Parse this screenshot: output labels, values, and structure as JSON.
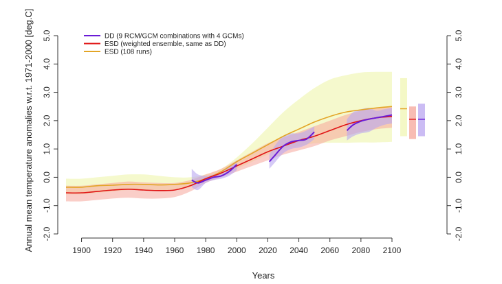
{
  "chart_data": {
    "type": "line",
    "title": "",
    "xlabel": "Years",
    "ylabel": "Annual mean temperature anomalies w.r.t. 1971-2000 [deg.C]",
    "xlim": [
      1890,
      2100
    ],
    "ylim": [
      -2.0,
      5.0
    ],
    "x_ticks": [
      1900,
      1920,
      1940,
      1960,
      1980,
      2000,
      2020,
      2040,
      2060,
      2080,
      2100
    ],
    "y_ticks": [
      -2.0,
      -1.0,
      0.0,
      1.0,
      2.0,
      3.0,
      4.0,
      5.0
    ],
    "y_tick_labels": [
      "-2.0",
      "-1.0",
      "0.0",
      "1.0",
      "2.0",
      "3.0",
      "4.0",
      "5.0"
    ],
    "grid": false,
    "legend_position": "top-left",
    "series": [
      {
        "name": "DD (9 RCM/GCM combinations with 4 GCMs)",
        "color": "#6a1bd6",
        "band_color": "#b9a6f0",
        "segments": [
          {
            "x": [
              1971,
              1975,
              1980,
              1985,
              1990,
              1995,
              2000
            ],
            "y": [
              -0.1,
              -0.2,
              -0.1,
              0.0,
              0.05,
              0.2,
              0.45
            ],
            "lower": [
              -0.35,
              -0.45,
              -0.2,
              -0.1,
              -0.05,
              0.05,
              0.25
            ],
            "upper": [
              0.3,
              0.1,
              0.05,
              0.1,
              0.2,
              0.35,
              0.6
            ]
          },
          {
            "x": [
              2021,
              2025,
              2030,
              2035,
              2040,
              2045,
              2050
            ],
            "y": [
              0.55,
              0.8,
              1.1,
              1.25,
              1.3,
              1.35,
              1.6
            ],
            "lower": [
              0.3,
              0.55,
              0.85,
              1.0,
              1.05,
              1.15,
              1.35
            ],
            "upper": [
              0.8,
              1.15,
              1.45,
              1.55,
              1.55,
              1.65,
              1.8
            ]
          },
          {
            "x": [
              2071,
              2075,
              2080,
              2085,
              2090,
              2095,
              2100
            ],
            "y": [
              1.65,
              1.85,
              1.98,
              2.05,
              2.1,
              2.15,
              2.2
            ],
            "lower": [
              1.3,
              1.45,
              1.55,
              1.6,
              1.75,
              1.85,
              1.9
            ],
            "upper": [
              2.05,
              2.3,
              2.4,
              2.45,
              2.35,
              2.4,
              2.45
            ]
          }
        ],
        "end_bar": {
          "low": 1.45,
          "high": 2.6,
          "mid": 2.05
        }
      },
      {
        "name": "ESD (weighted ensemble, same as DD)",
        "color": "#e01414",
        "band_color": "#f6a59a",
        "x": [
          1890,
          1900,
          1910,
          1920,
          1930,
          1940,
          1950,
          1960,
          1970,
          1980,
          1990,
          2000,
          2010,
          2020,
          2030,
          2040,
          2050,
          2060,
          2070,
          2080,
          2090,
          2100
        ],
        "y": [
          -0.55,
          -0.55,
          -0.5,
          -0.45,
          -0.42,
          -0.45,
          -0.47,
          -0.45,
          -0.3,
          -0.05,
          0.15,
          0.4,
          0.65,
          0.9,
          1.1,
          1.3,
          1.45,
          1.65,
          1.85,
          2.0,
          2.1,
          2.15
        ],
        "lower": [
          -0.85,
          -0.85,
          -0.8,
          -0.75,
          -0.72,
          -0.75,
          -0.75,
          -0.7,
          -0.5,
          -0.2,
          0.0,
          0.2,
          0.4,
          0.6,
          0.8,
          0.95,
          1.1,
          1.3,
          1.45,
          1.6,
          1.7,
          1.75
        ],
        "upper": [
          -0.3,
          -0.3,
          -0.25,
          -0.2,
          -0.15,
          -0.18,
          -0.2,
          -0.2,
          -0.1,
          0.1,
          0.3,
          0.6,
          0.9,
          1.2,
          1.4,
          1.6,
          1.8,
          2.0,
          2.2,
          2.35,
          2.45,
          2.5
        ],
        "end_bar": {
          "low": 1.35,
          "high": 2.5,
          "mid": 2.05
        }
      },
      {
        "name": "ESD (108 runs)",
        "color": "#e3a526",
        "band_color": "#f3f7c0",
        "x": [
          1890,
          1900,
          1910,
          1920,
          1930,
          1940,
          1950,
          1960,
          1970,
          1980,
          1990,
          2000,
          2010,
          2020,
          2030,
          2040,
          2050,
          2060,
          2070,
          2080,
          2090,
          2100
        ],
        "y": [
          -0.35,
          -0.35,
          -0.3,
          -0.28,
          -0.25,
          -0.25,
          -0.27,
          -0.25,
          -0.2,
          -0.05,
          0.2,
          0.55,
          0.85,
          1.15,
          1.45,
          1.7,
          1.95,
          2.15,
          2.3,
          2.38,
          2.45,
          2.5
        ],
        "lower": [
          -0.6,
          -0.6,
          -0.55,
          -0.5,
          -0.45,
          -0.45,
          -0.45,
          -0.45,
          -0.35,
          -0.15,
          0.05,
          0.3,
          0.55,
          0.8,
          1.0,
          1.1,
          1.2,
          1.22,
          1.22,
          1.23,
          1.23,
          1.25
        ],
        "upper": [
          -0.05,
          -0.05,
          0.0,
          0.05,
          0.1,
          0.1,
          0.05,
          0.0,
          0.0,
          0.1,
          0.3,
          0.7,
          1.2,
          1.75,
          2.3,
          2.75,
          3.15,
          3.45,
          3.6,
          3.7,
          3.72,
          3.72
        ],
        "end_bar": {
          "low": 1.45,
          "high": 3.5,
          "mid": 2.42
        }
      }
    ]
  }
}
